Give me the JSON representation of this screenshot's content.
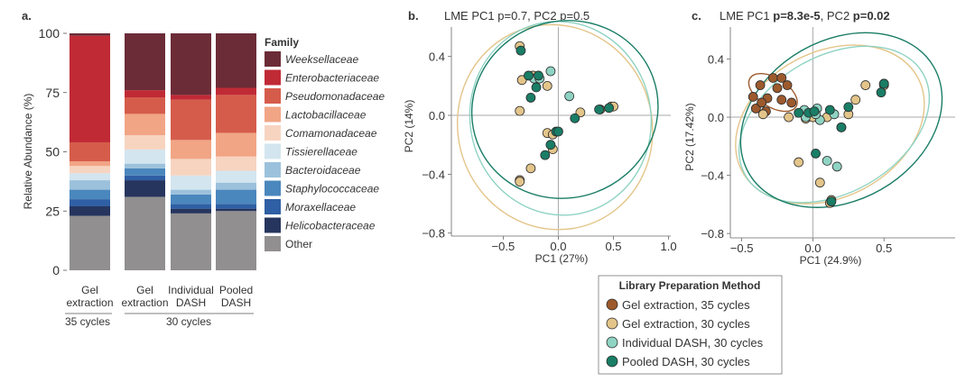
{
  "panel_a": {
    "label": "a.",
    "ylabel": "Relative Abundance (%)",
    "yticks": [
      "0",
      "25",
      "50",
      "75",
      "100"
    ],
    "legend_title": "Family",
    "group1_label": "35 cycles",
    "group2_label": "30 cycles"
  },
  "panel_b": {
    "label": "b.",
    "title": "LME PC1 p=0.7, PC2 p=0.5",
    "xlabel": "PC1 (27%)",
    "ylabel": "PC2 (14%)"
  },
  "panel_c": {
    "label": "c.",
    "title_parts": [
      "LME PC1 ",
      "p=8.3e-5",
      ", PC2 ",
      "p=0.02"
    ],
    "xlabel": "PC1 (24.9%)",
    "ylabel": "PC2 (17.42%)"
  },
  "method_legend": {
    "title": "Library Preparation Method",
    "items": [
      {
        "label": "Gel extraction, 35 cycles",
        "color": "#9c5a2d"
      },
      {
        "label": "Gel extraction, 30 cycles",
        "color": "#e3c58a"
      },
      {
        "label": "Individual DASH, 30 cycles",
        "color": "#8fd3c3"
      },
      {
        "label": "Pooled DASH, 30 cycles",
        "color": "#1a7d66"
      }
    ]
  },
  "chart_data": [
    {
      "type": "bar",
      "stacked": true,
      "categories": [
        "Gel extraction",
        "Gel extraction",
        "Individual DASH",
        "Pooled DASH"
      ],
      "ylabel": "Relative Abundance (%)",
      "ylim": [
        0,
        100
      ],
      "series": [
        {
          "name": "Other",
          "color": "#918f90",
          "values": [
            23,
            31,
            24,
            25
          ]
        },
        {
          "name": "Helicobacteraceae",
          "color": "#26355e",
          "values": [
            4,
            7,
            2,
            1
          ]
        },
        {
          "name": "Moraxellaceae",
          "color": "#2f5fa4",
          "values": [
            3,
            2,
            2,
            2
          ]
        },
        {
          "name": "Staphylococcaceae",
          "color": "#4a87bd",
          "values": [
            4,
            3,
            4,
            6
          ]
        },
        {
          "name": "Bacteroidaceae",
          "color": "#9cc1dc",
          "values": [
            4,
            2,
            2,
            3
          ]
        },
        {
          "name": "Tissierellaceae",
          "color": "#d3e5ef",
          "values": [
            3,
            6,
            6,
            5
          ]
        },
        {
          "name": "Comamonadaceae",
          "color": "#f7d4c0",
          "values": [
            3,
            6,
            7,
            6
          ]
        },
        {
          "name": "Lactobacillaceae",
          "color": "#f1a585",
          "values": [
            2,
            9,
            8,
            10
          ]
        },
        {
          "name": "Pseudomonadaceae",
          "color": "#d55c4b",
          "values": [
            8,
            7,
            17,
            16
          ]
        },
        {
          "name": "Enterobacteriaceae",
          "color": "#c02a35",
          "values": [
            45,
            3,
            2,
            3
          ]
        },
        {
          "name": "Weeksellaceae",
          "color": "#6b2c37",
          "values": [
            1,
            24,
            26,
            23
          ]
        }
      ],
      "legend": "right"
    },
    {
      "type": "scatter",
      "title": "LME PC1 p=0.7, PC2 p=0.5",
      "xlabel": "PC1 (27%)",
      "ylabel": "PC2 (14%)",
      "xlim": [
        -0.97,
        1.02
      ],
      "ylim": [
        -0.82,
        0.6
      ],
      "xticks": [
        -0.5,
        0,
        0.5,
        1.0
      ],
      "xtick_labels": [
        "−0.5",
        "0.0",
        "0.5",
        "1.0"
      ],
      "yticks": [
        0.4,
        0,
        -0.4,
        -0.8
      ],
      "ytick_labels": [
        "0.4",
        "0.0",
        "−0.4",
        "−0.8"
      ],
      "series": [
        {
          "name": "Gel extraction, 30 cycles",
          "color": "#e3c58a",
          "points": [
            [
              -0.35,
              0.47
            ],
            [
              -0.33,
              0.24
            ],
            [
              -0.23,
              0.27
            ],
            [
              -0.35,
              0.03
            ],
            [
              -0.1,
              -0.12
            ],
            [
              -0.05,
              -0.13
            ],
            [
              0.2,
              0.02
            ],
            [
              0.48,
              0.06
            ],
            [
              0.5,
              0.06
            ],
            [
              -0.25,
              -0.36
            ],
            [
              -0.35,
              -0.44
            ],
            [
              -0.35,
              -0.45
            ],
            [
              -0.05,
              -0.23
            ],
            [
              0.38,
              0.04
            ],
            [
              -0.1,
              0.2
            ]
          ],
          "ellipse": {
            "cx": -0.03,
            "cy": -0.08,
            "rx": 0.88,
            "ry": 0.7,
            "angle": 18
          }
        },
        {
          "name": "Individual DASH, 30 cycles",
          "color": "#8fd3c3",
          "points": [
            [
              -0.22,
              0.25
            ],
            [
              -0.17,
              0.25
            ],
            [
              0.1,
              0.13
            ],
            [
              -0.07,
              0.3
            ]
          ],
          "ellipse": {
            "cx": 0.02,
            "cy": -0.02,
            "rx": 0.82,
            "ry": 0.66,
            "angle": 12
          }
        },
        {
          "name": "Pooled DASH, 30 cycles",
          "color": "#1a7d66",
          "points": [
            [
              -0.34,
              0.44
            ],
            [
              -0.27,
              0.27
            ],
            [
              -0.25,
              0.12
            ],
            [
              -0.2,
              0.19
            ],
            [
              -0.18,
              0.27
            ],
            [
              0.15,
              -0.02
            ],
            [
              0.37,
              0.04
            ],
            [
              0.46,
              0.05
            ],
            [
              -0.07,
              -0.2
            ],
            [
              -0.12,
              -0.27
            ],
            [
              -0.02,
              -0.11
            ],
            [
              0.0,
              -0.11
            ]
          ],
          "ellipse": {
            "cx": 0.06,
            "cy": 0.04,
            "rx": 0.85,
            "ry": 0.6,
            "angle": 20
          }
        }
      ]
    },
    {
      "type": "scatter",
      "title": "LME PC1 p=8.3e-5, PC2 p=0.02",
      "xlabel": "PC1 (24.9%)",
      "ylabel": "PC2 (17.42%)",
      "xlim": [
        -0.58,
        1.0
      ],
      "ylim": [
        -0.83,
        0.62
      ],
      "xticks": [
        -0.5,
        0,
        0.5
      ],
      "xtick_labels": [
        "−0.5",
        "0.0",
        "0.5"
      ],
      "yticks": [
        0.4,
        0,
        -0.4,
        -0.8
      ],
      "ytick_labels": [
        "0.4",
        "0.0",
        "−0.4",
        "−0.8"
      ],
      "series": [
        {
          "name": "Gel extraction, 35 cycles",
          "color": "#9c5a2d",
          "points": [
            [
              -0.42,
              0.14
            ],
            [
              -0.37,
              0.22
            ],
            [
              -0.32,
              0.13
            ],
            [
              -0.28,
              0.27
            ],
            [
              -0.22,
              0.27
            ],
            [
              -0.25,
              0.2
            ],
            [
              -0.18,
              0.22
            ],
            [
              -0.15,
              0.1
            ],
            [
              -0.33,
              0.04
            ],
            [
              -0.4,
              0.06
            ],
            [
              -0.22,
              0.12
            ],
            [
              -0.36,
              0.1
            ]
          ],
          "ellipse": {
            "cx": -0.28,
            "cy": 0.17,
            "rx": 0.19,
            "ry": 0.1,
            "angle": -32
          }
        },
        {
          "name": "Gel extraction, 30 cycles",
          "color": "#e3c58a",
          "points": [
            [
              -0.17,
              0.0
            ],
            [
              -0.05,
              -0.01
            ],
            [
              0.0,
              0.0
            ],
            [
              0.1,
              0.0
            ],
            [
              0.37,
              0.22
            ],
            [
              0.3,
              0.12
            ],
            [
              -0.1,
              -0.31
            ],
            [
              0.05,
              -0.45
            ],
            [
              0.13,
              -0.57
            ],
            [
              0.5,
              0.23
            ],
            [
              0.5,
              0.22
            ],
            [
              0.25,
              0.02
            ],
            [
              -0.35,
              0.02
            ],
            [
              0.12,
              -0.59
            ]
          ],
          "ellipse": {
            "cx": 0.12,
            "cy": -0.05,
            "rx": 0.7,
            "ry": 0.5,
            "angle": 28
          }
        },
        {
          "name": "Individual DASH, 30 cycles",
          "color": "#8fd3c3",
          "points": [
            [
              -0.06,
              0.05
            ],
            [
              0.03,
              0.06
            ],
            [
              0.05,
              -0.02
            ],
            [
              -0.05,
              0.0
            ],
            [
              0.02,
              0.02
            ],
            [
              0.15,
              0.02
            ],
            [
              0.1,
              -0.3
            ],
            [
              0.17,
              -0.34
            ],
            [
              0.2,
              -0.07
            ]
          ],
          "ellipse": {
            "cx": 0.15,
            "cy": -0.05,
            "rx": 0.72,
            "ry": 0.47,
            "angle": 30
          }
        },
        {
          "name": "Pooled DASH, 30 cycles",
          "color": "#1a7d66",
          "points": [
            [
              -0.1,
              0.03
            ],
            [
              -0.03,
              0.03
            ],
            [
              0.01,
              0.04
            ],
            [
              0.12,
              0.05
            ],
            [
              0.25,
              0.07
            ],
            [
              0.5,
              0.23
            ],
            [
              0.48,
              0.17
            ],
            [
              0.02,
              -0.25
            ],
            [
              0.13,
              -0.58
            ],
            [
              0.2,
              -0.07
            ]
          ],
          "ellipse": {
            "cx": 0.2,
            "cy": -0.02,
            "rx": 0.75,
            "ry": 0.55,
            "angle": 30
          }
        }
      ]
    }
  ]
}
